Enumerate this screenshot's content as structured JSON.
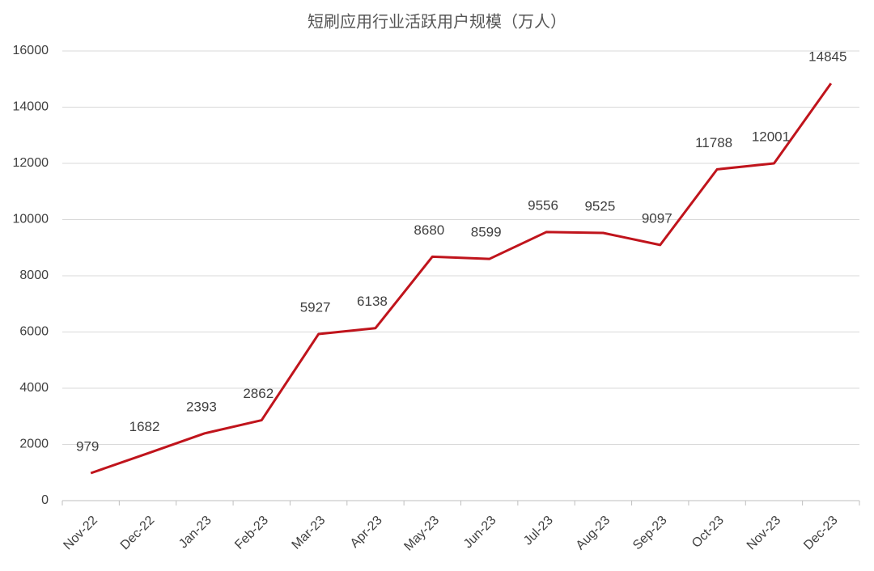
{
  "chart_data": {
    "type": "line",
    "title": "短刷应用行业活跃用户规模（万人）",
    "categories": [
      "Nov-22",
      "Dec-22",
      "Jan-23",
      "Feb-23",
      "Mar-23",
      "Apr-23",
      "May-23",
      "Jun-23",
      "Jul-23",
      "Aug-23",
      "Sep-23",
      "Oct-23",
      "Nov-23",
      "Dec-23"
    ],
    "series": [
      {
        "name": "活跃用户规模",
        "color": "#c0141c",
        "values": [
          979,
          1682,
          2393,
          2862,
          5927,
          6138,
          8680,
          8599,
          9556,
          9525,
          9097,
          11788,
          12001,
          14845
        ]
      }
    ],
    "ylim": [
      0,
      16000
    ],
    "yticks": [
      0,
      2000,
      4000,
      6000,
      8000,
      10000,
      12000,
      14000,
      16000
    ],
    "grid": true
  }
}
